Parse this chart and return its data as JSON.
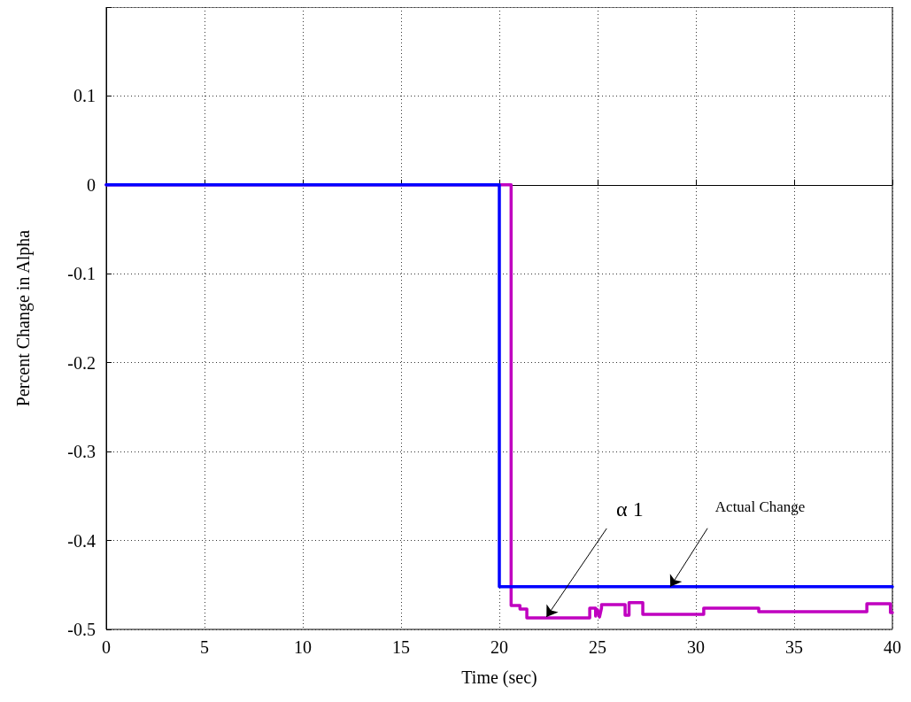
{
  "chart_data": {
    "type": "line",
    "xlabel": "Time (sec)",
    "ylabel": "Percent Change in Alpha",
    "xlim": [
      0,
      40
    ],
    "xticks": [
      0,
      5,
      10,
      15,
      20,
      25,
      30,
      35,
      40
    ],
    "ylim": [
      -0.5,
      0.2
    ],
    "yticks": [
      -0.5,
      -0.4,
      -0.3,
      -0.2,
      -0.1,
      0,
      0.1,
      {
        "value": 0.2,
        "label": null
      }
    ],
    "grid": true,
    "marker": "none",
    "line_style": "solid",
    "series": [
      {
        "color": "#c000c0",
        "x": [
          0,
          20.6,
          20.6,
          21.05,
          21.05,
          21.4,
          21.4,
          24.6,
          24.6,
          24.9,
          24.9,
          25.0,
          25.1,
          25.2,
          25.2,
          26.4,
          26.4,
          26.6,
          26.6,
          27.3,
          27.3,
          30.4,
          30.4,
          33.2,
          33.2,
          38.7,
          38.7,
          39.9,
          39.9,
          40
        ],
        "values": [
          0,
          0,
          -0.473,
          -0.473,
          -0.477,
          -0.477,
          -0.487,
          -0.487,
          -0.476,
          -0.476,
          -0.485,
          -0.478,
          -0.486,
          -0.476,
          -0.472,
          -0.472,
          -0.484,
          -0.484,
          -0.47,
          -0.47,
          -0.483,
          -0.483,
          -0.476,
          -0.476,
          -0.48,
          -0.48,
          -0.471,
          -0.471,
          -0.481,
          -0.481
        ]
      },
      {
        "color": "#0000ff",
        "x": [
          0,
          20,
          20,
          40
        ],
        "values": [
          0,
          0,
          -0.452,
          -0.452
        ]
      }
    ],
    "annotations": [
      {
        "text": "α 1",
        "x": 22.4,
        "y": -0.486
      },
      {
        "text": "Actual Change",
        "x": 28.7,
        "y": -0.452
      }
    ]
  }
}
